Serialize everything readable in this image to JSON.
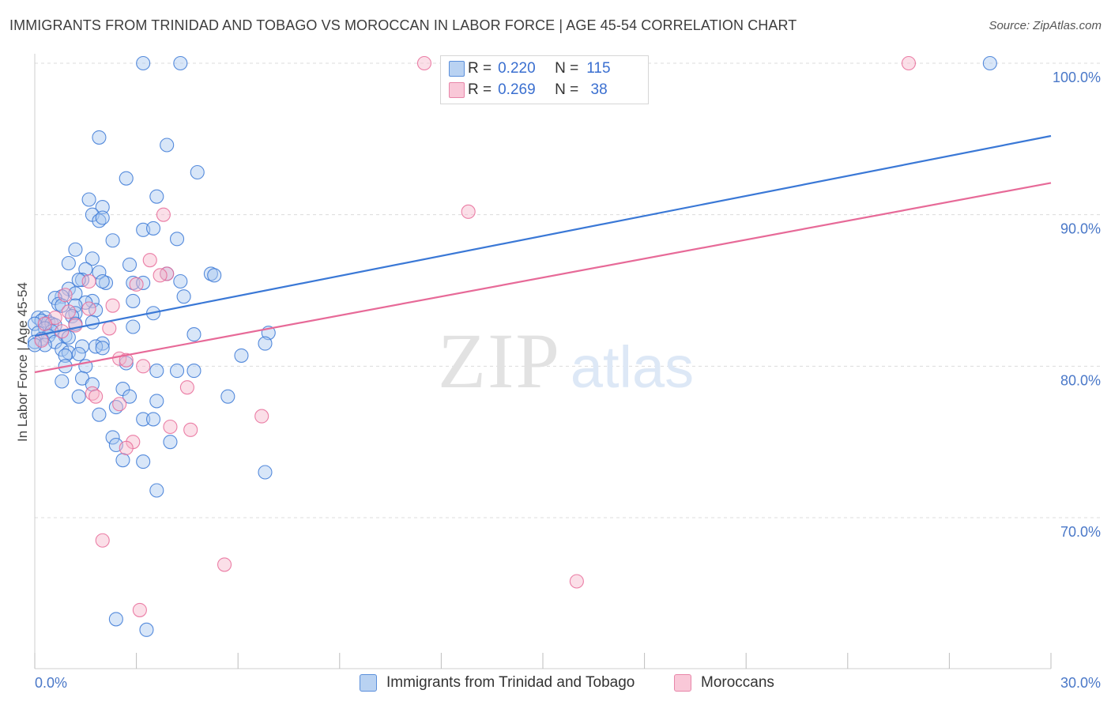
{
  "title": "IMMIGRANTS FROM TRINIDAD AND TOBAGO VS MOROCCAN IN LABOR FORCE | AGE 45-54 CORRELATION CHART",
  "source": "Source: ZipAtlas.com",
  "watermark": {
    "zip": "ZIP",
    "atlas": "atlas"
  },
  "colors": {
    "blue": "#3a78d6",
    "pink": "#e76a98",
    "blue_fill": "#a9c8f0",
    "pink_fill": "#f6b9cd",
    "grid": "#dcdcdc",
    "axis_text": "#4a78c8"
  },
  "legend": {
    "rows": [
      {
        "r_label": "R =",
        "r_value": "0.220",
        "n_label": "N =",
        "n_value": "115"
      },
      {
        "r_label": "R =",
        "r_value": "0.269",
        "n_label": "N =",
        "n_value": " 38"
      }
    ]
  },
  "bottom_legend": {
    "blue_label": "Immigrants from Trinidad and Tobago",
    "pink_label": "Moroccans"
  },
  "chart_data": {
    "type": "scatter",
    "title": "IMMIGRANTS FROM TRINIDAD AND TOBAGO VS MOROCCAN IN LABOR FORCE | AGE 45-54 CORRELATION CHART",
    "xlabel": "",
    "ylabel": "In Labor Force | Age 45-54",
    "xlim": [
      0,
      30
    ],
    "ylim": [
      60,
      101.5
    ],
    "x_tick_labels": [
      "0.0%",
      "30.0%"
    ],
    "y_ticks": [
      70,
      80,
      90,
      100
    ],
    "y_tick_labels": [
      "70.0%",
      "80.0%",
      "90.0%",
      "100.0%"
    ],
    "grid": true,
    "legend_position": "top-center",
    "series": [
      {
        "name": "Immigrants from Trinidad and Tobago",
        "color": "#3a78d6",
        "stats": {
          "R": 0.22,
          "N": 115
        },
        "trend": {
          "x": [
            0,
            30
          ],
          "y": [
            82.0,
            95.2
          ]
        },
        "points": [
          [
            3.2,
            100.0
          ],
          [
            4.3,
            100.0
          ],
          [
            28.2,
            100.0
          ],
          [
            1.9,
            95.1
          ],
          [
            3.9,
            94.6
          ],
          [
            4.8,
            92.8
          ],
          [
            2.7,
            92.4
          ],
          [
            3.6,
            91.2
          ],
          [
            1.6,
            91.0
          ],
          [
            2.0,
            90.5
          ],
          [
            1.7,
            90.0
          ],
          [
            1.9,
            89.6
          ],
          [
            2.0,
            89.8
          ],
          [
            3.2,
            89.0
          ],
          [
            3.5,
            89.1
          ],
          [
            2.3,
            88.3
          ],
          [
            4.2,
            88.4
          ],
          [
            1.2,
            87.7
          ],
          [
            1.7,
            87.1
          ],
          [
            1.0,
            86.8
          ],
          [
            2.8,
            86.7
          ],
          [
            1.5,
            86.4
          ],
          [
            1.9,
            86.2
          ],
          [
            5.2,
            86.1
          ],
          [
            5.3,
            86.0
          ],
          [
            3.9,
            86.1
          ],
          [
            1.4,
            85.7
          ],
          [
            1.3,
            85.7
          ],
          [
            2.1,
            85.5
          ],
          [
            2.0,
            85.6
          ],
          [
            2.9,
            85.5
          ],
          [
            3.2,
            85.5
          ],
          [
            4.3,
            85.6
          ],
          [
            1.0,
            85.1
          ],
          [
            1.2,
            84.8
          ],
          [
            0.8,
            84.6
          ],
          [
            4.4,
            84.6
          ],
          [
            0.6,
            84.5
          ],
          [
            1.7,
            84.3
          ],
          [
            1.5,
            84.2
          ],
          [
            2.9,
            84.3
          ],
          [
            0.7,
            84.1
          ],
          [
            0.8,
            84.0
          ],
          [
            1.2,
            84.0
          ],
          [
            1.8,
            83.7
          ],
          [
            1.2,
            83.5
          ],
          [
            3.5,
            83.5
          ],
          [
            0.1,
            83.2
          ],
          [
            0.3,
            83.2
          ],
          [
            1.1,
            83.3
          ],
          [
            0.2,
            83.0
          ],
          [
            0.4,
            82.9
          ],
          [
            0.5,
            82.8
          ],
          [
            0.6,
            82.7
          ],
          [
            1.7,
            82.9
          ],
          [
            1.2,
            82.8
          ],
          [
            2.9,
            82.6
          ],
          [
            0.0,
            82.8
          ],
          [
            0.3,
            82.5
          ],
          [
            0.1,
            82.2
          ],
          [
            0.5,
            82.3
          ],
          [
            6.9,
            82.2
          ],
          [
            4.7,
            82.1
          ],
          [
            0.4,
            82.0
          ],
          [
            0.9,
            82.0
          ],
          [
            1.0,
            81.9
          ],
          [
            0.2,
            81.8
          ],
          [
            0.6,
            81.6
          ],
          [
            0.0,
            81.6
          ],
          [
            0.3,
            81.4
          ],
          [
            0.0,
            81.4
          ],
          [
            6.8,
            81.5
          ],
          [
            2.0,
            81.5
          ],
          [
            1.4,
            81.3
          ],
          [
            1.8,
            81.3
          ],
          [
            0.8,
            81.1
          ],
          [
            2.0,
            81.2
          ],
          [
            1.0,
            80.9
          ],
          [
            1.3,
            80.8
          ],
          [
            0.9,
            80.7
          ],
          [
            6.1,
            80.7
          ],
          [
            2.7,
            80.2
          ],
          [
            1.5,
            80.0
          ],
          [
            0.9,
            80.0
          ],
          [
            3.6,
            79.7
          ],
          [
            4.2,
            79.7
          ],
          [
            4.7,
            79.7
          ],
          [
            1.4,
            79.2
          ],
          [
            0.8,
            79.0
          ],
          [
            1.7,
            78.8
          ],
          [
            2.6,
            78.5
          ],
          [
            5.7,
            78.0
          ],
          [
            1.3,
            78.0
          ],
          [
            2.8,
            78.0
          ],
          [
            3.6,
            77.7
          ],
          [
            2.4,
            77.3
          ],
          [
            1.9,
            76.8
          ],
          [
            3.2,
            76.5
          ],
          [
            3.5,
            76.5
          ],
          [
            2.3,
            75.3
          ],
          [
            4.0,
            75.0
          ],
          [
            2.4,
            74.8
          ],
          [
            2.6,
            73.8
          ],
          [
            3.2,
            73.7
          ],
          [
            6.8,
            73.0
          ],
          [
            3.6,
            71.8
          ],
          [
            2.4,
            63.3
          ],
          [
            3.3,
            62.6
          ]
        ]
      },
      {
        "name": "Moroccans",
        "color": "#e76a98",
        "stats": {
          "R": 0.269,
          "N": 38
        },
        "trend": {
          "x": [
            0,
            30
          ],
          "y": [
            79.6,
            92.1
          ]
        },
        "points": [
          [
            11.5,
            100.0
          ],
          [
            25.8,
            100.0
          ],
          [
            12.8,
            90.2
          ],
          [
            3.8,
            90.0
          ],
          [
            3.4,
            87.0
          ],
          [
            3.9,
            86.1
          ],
          [
            3.7,
            86.0
          ],
          [
            1.6,
            85.6
          ],
          [
            3.0,
            85.4
          ],
          [
            0.9,
            84.7
          ],
          [
            2.3,
            84.0
          ],
          [
            1.6,
            83.8
          ],
          [
            1.0,
            83.6
          ],
          [
            0.6,
            83.2
          ],
          [
            0.3,
            82.8
          ],
          [
            1.2,
            82.7
          ],
          [
            2.2,
            82.5
          ],
          [
            0.8,
            82.3
          ],
          [
            0.2,
            81.7
          ],
          [
            2.5,
            80.5
          ],
          [
            2.7,
            80.4
          ],
          [
            3.2,
            80.0
          ],
          [
            4.5,
            78.6
          ],
          [
            1.7,
            78.2
          ],
          [
            1.8,
            78.0
          ],
          [
            2.5,
            77.5
          ],
          [
            6.7,
            76.7
          ],
          [
            4.0,
            76.0
          ],
          [
            4.6,
            75.8
          ],
          [
            2.9,
            75.0
          ],
          [
            2.7,
            74.6
          ],
          [
            2.0,
            68.5
          ],
          [
            5.6,
            66.9
          ],
          [
            16.0,
            65.8
          ],
          [
            3.1,
            63.9
          ]
        ]
      }
    ]
  }
}
